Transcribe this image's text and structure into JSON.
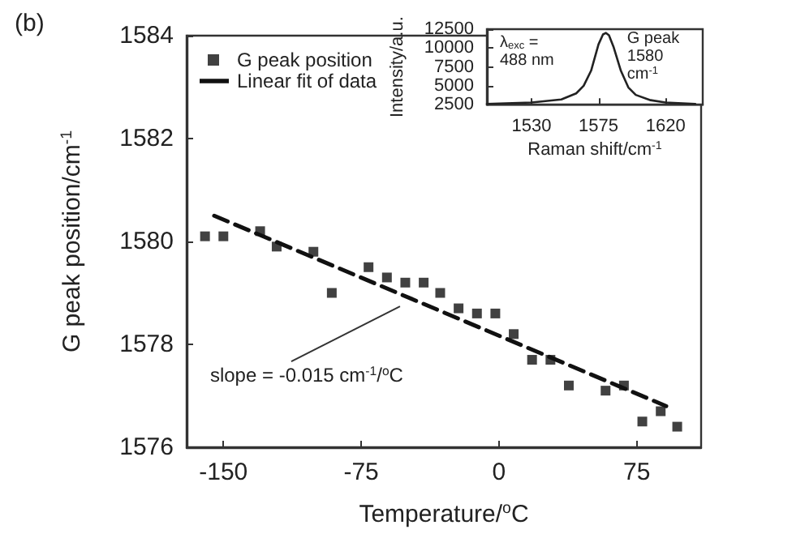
{
  "chart_data": [
    {
      "type": "scatter",
      "title": "(b)",
      "xlabel": "Temperature/$^{o}$C",
      "ylabel": "G peak position/cm$^{-1}$",
      "xlim": [
        -170,
        110
      ],
      "xticks": [
        -150,
        -75,
        0,
        75
      ],
      "ylim": [
        1576,
        1584
      ],
      "yticks": [
        1576,
        1578,
        1580,
        1582,
        1584
      ],
      "grid": false,
      "legend": "top left",
      "annotations": [
        {
          "text": "slope = -0.015 cm$^{-1}$/$^{o}$C",
          "x": -53,
          "y": 1578.8
        }
      ],
      "series": [
        {
          "name": "G peak position",
          "marker": "square",
          "color": "#111111",
          "x": [
            -160,
            -150,
            -130,
            -121,
            -101,
            -91,
            -71,
            -61,
            -51,
            -41,
            -32,
            -22,
            -12,
            -2,
            8,
            18,
            28,
            38,
            58,
            68,
            78,
            88,
            97
          ],
          "values": [
            1580.1,
            1580.1,
            1580.2,
            1579.9,
            1579.8,
            1579.0,
            1579.5,
            1579.3,
            1579.2,
            1579.2,
            1579.0,
            1578.7,
            1578.6,
            1578.6,
            1578.2,
            1577.7,
            1577.7,
            1577.2,
            1577.1,
            1577.2,
            1576.5,
            1576.7,
            1576.4
          ]
        },
        {
          "name": "Linear fit of data",
          "type": "line",
          "marker": "none",
          "line_style": "dashed",
          "color": "#111111",
          "x": [
            -155,
            91
          ],
          "values": [
            1580.5,
            1576.8
          ]
        }
      ]
    },
    {
      "type": "line",
      "xlabel": "Raman shift/cm$^{-1}$",
      "ylabel": "Intensity/a.u.",
      "xlim": [
        1500,
        1645
      ],
      "xticks": [
        1530,
        1575,
        1620
      ],
      "ylim": [
        2500,
        12500
      ],
      "yticks": [
        2500,
        5000,
        7500,
        10000,
        12500
      ],
      "grid": false,
      "legend": false,
      "marker": "none",
      "annotations": [
        "λ$_{exc}$ =\n488 nm",
        {
          "text": "G peak\n1580\ncm$^{-1}$",
          "x": 1580,
          "y": 12000
        }
      ],
      "series": [
        {
          "color": "#222222",
          "x": [
            1500,
            1530,
            1550,
            1560,
            1565,
            1570,
            1575,
            1578,
            1580,
            1582,
            1585,
            1590,
            1595,
            1600,
            1610,
            1620,
            1640
          ],
          "values": [
            2600,
            2800,
            3200,
            4000,
            5000,
            7000,
            10500,
            11800,
            12000,
            11700,
            10200,
            7000,
            4800,
            3800,
            3100,
            2800,
            2600
          ]
        }
      ]
    }
  ]
}
